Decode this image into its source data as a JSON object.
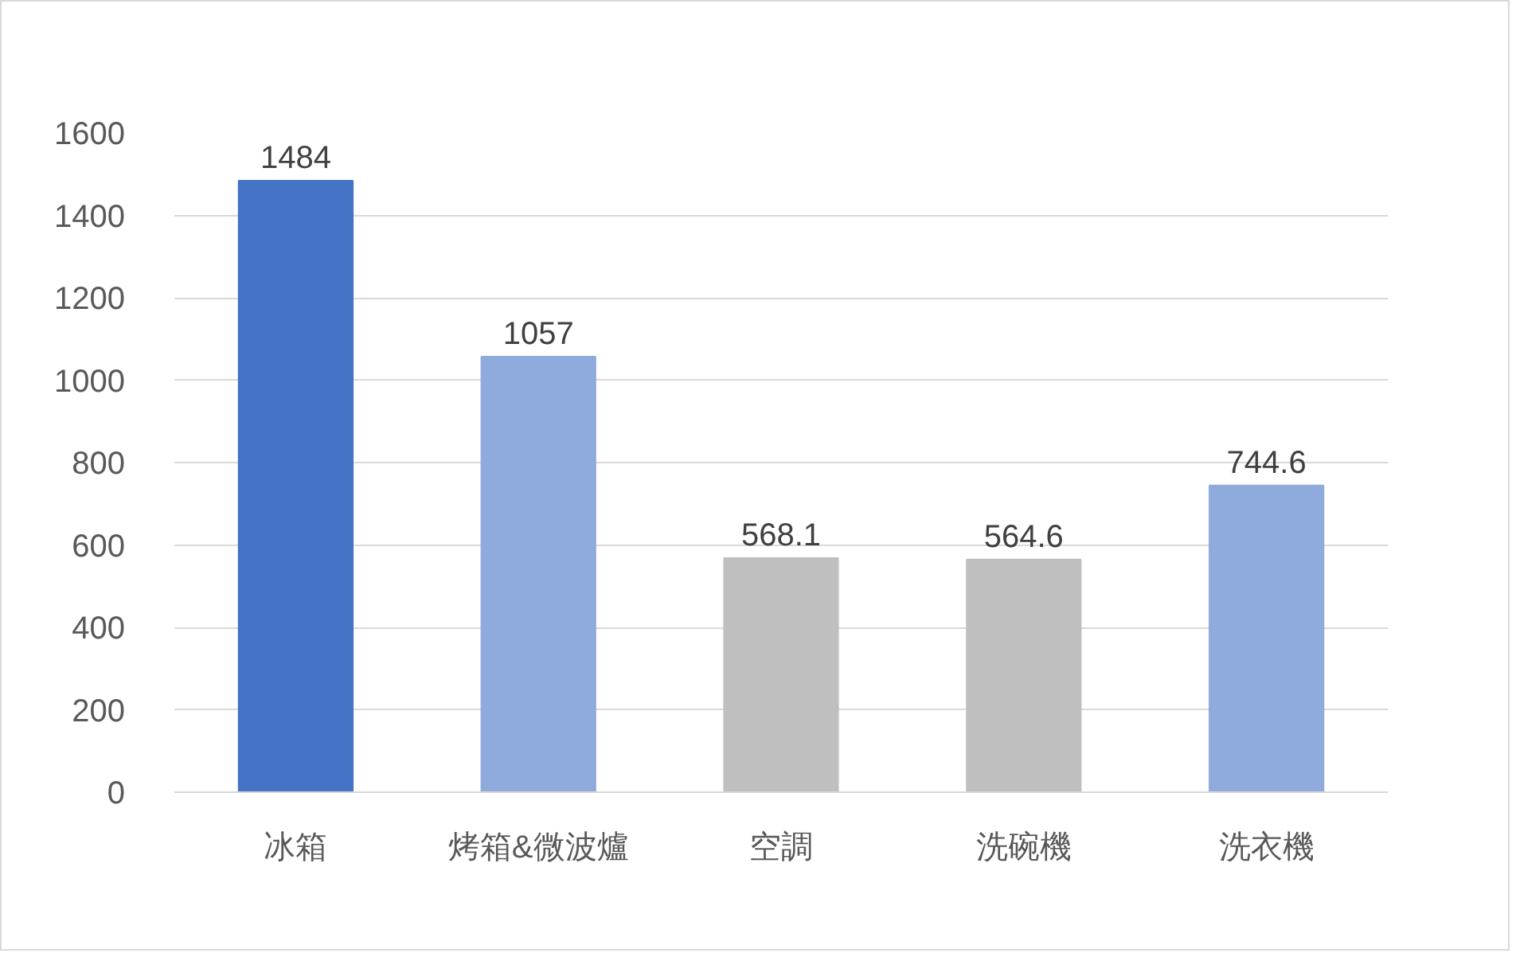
{
  "chart_data": {
    "type": "bar",
    "categories": [
      "冰箱",
      "烤箱&微波爐",
      "空調",
      "洗碗機",
      "洗衣機"
    ],
    "values": [
      1484,
      1057,
      568.1,
      564.6,
      744.6
    ],
    "colors": [
      "#4472c4",
      "#8faadc",
      "#bfbfbf",
      "#bfbfbf",
      "#8faadc"
    ],
    "ylim": [
      0,
      1600
    ],
    "yticks": [
      0,
      200,
      400,
      600,
      800,
      1000,
      1200,
      1400,
      1600
    ],
    "grid": "y",
    "data_labels": true
  }
}
